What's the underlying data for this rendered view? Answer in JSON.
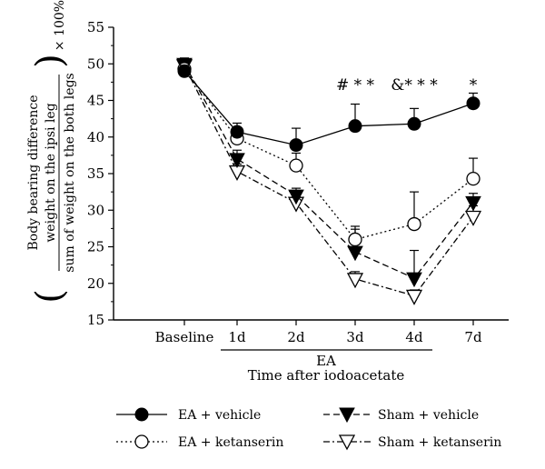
{
  "chart_data": {
    "type": "line",
    "title": "",
    "ylabel": {
      "top": "Body bearing difference",
      "numerator": "weight on the ipsi leg",
      "denominator": "sum of weight on the both legs",
      "multiplier": "× 100%"
    },
    "xlabel": "Time after iodoacetate",
    "bracket_label": "EA",
    "categories": [
      "Baseline",
      "1d",
      "2d",
      "3d",
      "4d",
      "7d"
    ],
    "y_ticks": [
      "15",
      "20",
      "25",
      "30",
      "35",
      "40",
      "45",
      "50",
      "55"
    ],
    "ylim": [
      15,
      55
    ],
    "series": [
      {
        "name": "EA + vehicle",
        "marker": "circle-filled",
        "line": "solid",
        "values": [
          49.0,
          40.7,
          38.9,
          41.5,
          41.8,
          44.6
        ],
        "errors": [
          0.8,
          1.2,
          2.3,
          3.0,
          2.1,
          1.4
        ]
      },
      {
        "name": "EA + ketanserin",
        "marker": "circle-open",
        "line": "dotted",
        "values": [
          49.3,
          39.8,
          36.1,
          26.0,
          28.1,
          34.3
        ],
        "errors": [
          0.8,
          1.5,
          1.7,
          1.4,
          4.4,
          2.8
        ]
      },
      {
        "name": "Sham + vehicle",
        "marker": "triangle-down-filled",
        "line": "dashed",
        "values": [
          50.0,
          37.0,
          32.0,
          24.3,
          20.7,
          31.1
        ],
        "errors": [
          0.8,
          1.2,
          1.0,
          3.5,
          3.8,
          1.2
        ]
      },
      {
        "name": "Sham + ketanserin",
        "marker": "triangle-down-open",
        "line": "dashdot",
        "values": [
          49.8,
          35.3,
          31.0,
          20.6,
          18.3,
          29.1
        ],
        "errors": [
          0.8,
          1.0,
          0.9,
          1.0,
          0.8,
          1.5
        ]
      }
    ],
    "annotations": [
      {
        "category": "3d",
        "y": 47.2,
        "text": "# * *"
      },
      {
        "category": "4d",
        "y": 47.2,
        "text": "&* * *"
      },
      {
        "category": "7d",
        "y": 47.2,
        "text": "*"
      }
    ]
  }
}
